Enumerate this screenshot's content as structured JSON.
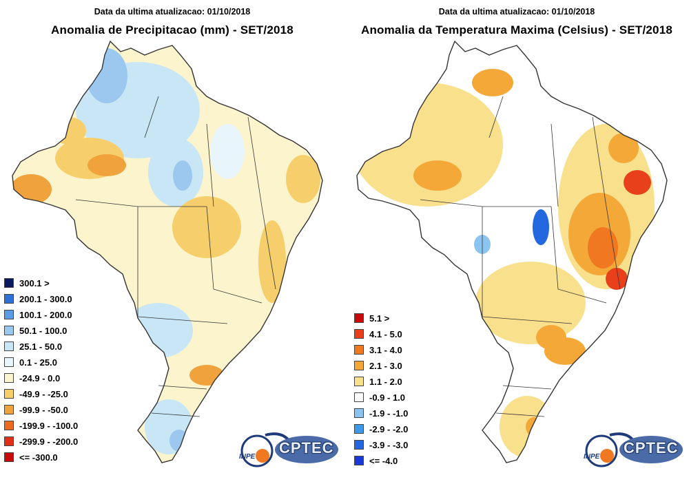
{
  "left_panel": {
    "update_text": "Data da ultima atualizacao: 01/10/2018",
    "title": "Anomalia de Precipitacao (mm) - SET/2018",
    "legend": [
      {
        "label": "300.1 >",
        "color": "#0a1a5c"
      },
      {
        "label": "200.1 - 300.0",
        "color": "#2f6fd8"
      },
      {
        "label": "100.1 - 200.0",
        "color": "#5a9be8"
      },
      {
        "label": "50.1 - 100.0",
        "color": "#9cc8f0"
      },
      {
        "label": "25.1 - 50.0",
        "color": "#c8e6f6"
      },
      {
        "label": "0.1 - 25.0",
        "color": "#e8f6fb"
      },
      {
        "label": "-24.9 - 0.0",
        "color": "#fbf4cc"
      },
      {
        "label": "-49.9 - -25.0",
        "color": "#f6cf6c"
      },
      {
        "label": "-99.9 - -50.0",
        "color": "#f0a23c"
      },
      {
        "label": "-199.9 - -100.0",
        "color": "#ec6a1e"
      },
      {
        "label": "-299.9 - -200.0",
        "color": "#e0301a"
      },
      {
        "label": "<= -300.0",
        "color": "#c80a0a"
      }
    ],
    "logo_inpe": "INPE",
    "logo_cptec": "CPTEC"
  },
  "right_panel": {
    "update_text": "Data da ultima atualizacao: 01/10/2018",
    "title": "Anomalia da Temperatura Maxima (Celsius) - SET/2018",
    "legend": [
      {
        "label": "5.1 >",
        "color": "#c80a0a"
      },
      {
        "label": "4.1 - 5.0",
        "color": "#e8401a"
      },
      {
        "label": "3.1 - 4.0",
        "color": "#f07820"
      },
      {
        "label": "2.1 - 3.0",
        "color": "#f4a838"
      },
      {
        "label": "1.1 - 2.0",
        "color": "#f8e08c"
      },
      {
        "label": "-0.9 - 1.0",
        "color": "#ffffff"
      },
      {
        "label": "-1.9 - -1.0",
        "color": "#8cc4f0"
      },
      {
        "label": "-2.9 - -2.0",
        "color": "#3c9ae8"
      },
      {
        "label": "-3.9 - -3.0",
        "color": "#2468e0"
      },
      {
        "label": "<= -4.0",
        "color": "#1a3ad8"
      }
    ],
    "logo_inpe": "INPE",
    "logo_cptec": "CPTEC"
  }
}
